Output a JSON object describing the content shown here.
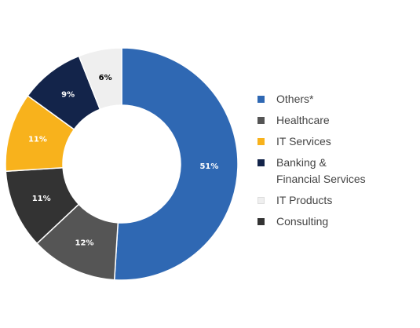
{
  "chart_data": {
    "type": "pie",
    "donut": true,
    "slices": [
      {
        "name": "Others*",
        "value": 51,
        "label": "51%",
        "color": "#2f68b3",
        "label_color": "#ffffff"
      },
      {
        "name": "Healthcare",
        "value": 12,
        "label": "12%",
        "color": "#555555",
        "label_color": "#ffffff"
      },
      {
        "name": "Consulting",
        "value": 11,
        "label": "11%",
        "color": "#333333",
        "label_color": "#ffffff"
      },
      {
        "name": "IT Services",
        "value": 11,
        "label": "11%",
        "color": "#f8b21c",
        "label_color": "#ffffff"
      },
      {
        "name": "Banking & Financial Services",
        "value": 9,
        "label": "9%",
        "color": "#13244a",
        "label_color": "#ffffff"
      },
      {
        "name": "IT Products",
        "value": 6,
        "label": "6%",
        "color": "#efefef",
        "label_color": "#000000"
      }
    ],
    "legend": {
      "placement": "right",
      "items": [
        {
          "lines": [
            "Others*"
          ],
          "color": "#2f68b3"
        },
        {
          "lines": [
            "Healthcare"
          ],
          "color": "#555555"
        },
        {
          "lines": [
            "IT Services"
          ],
          "color": "#f8b21c"
        },
        {
          "lines": [
            "Banking &",
            "Financial Services"
          ],
          "color": "#13244a"
        },
        {
          "lines": [
            "IT Products"
          ],
          "color": "#efefef"
        },
        {
          "lines": [
            "Consulting"
          ],
          "color": "#333333"
        }
      ]
    }
  }
}
